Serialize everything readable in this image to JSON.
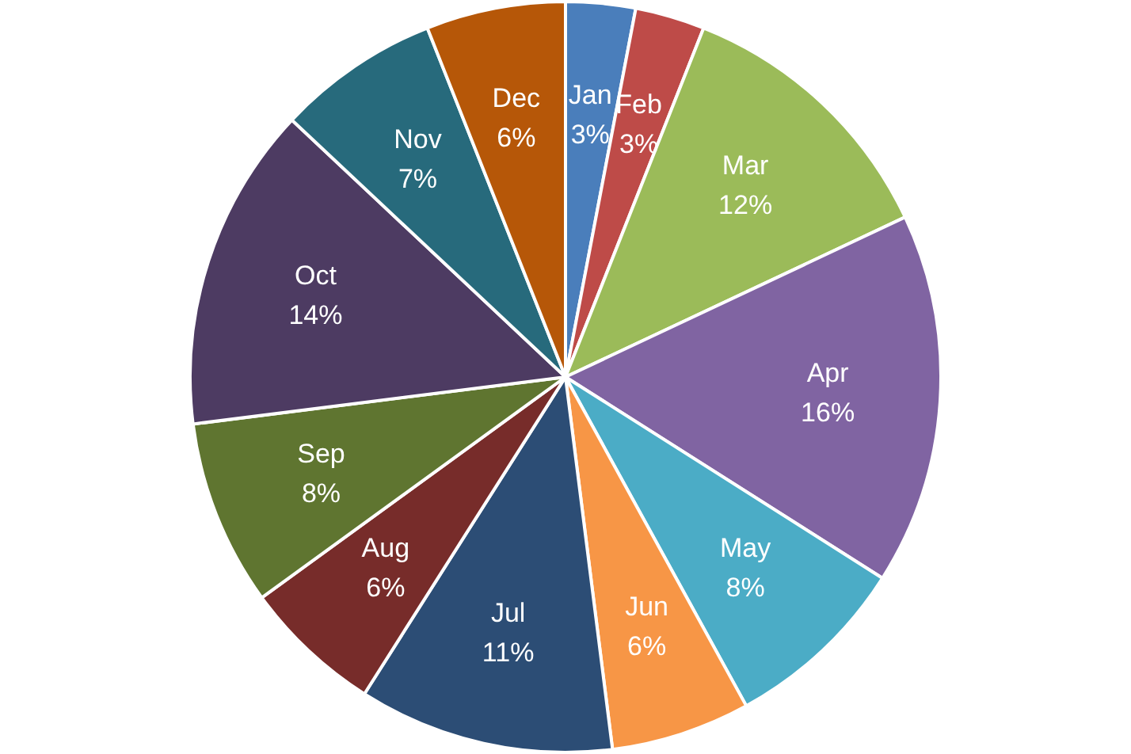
{
  "chart_data": {
    "type": "pie",
    "categories": [
      "Jan",
      "Feb",
      "Mar",
      "Apr",
      "May",
      "Jun",
      "Jul",
      "Aug",
      "Sep",
      "Oct",
      "Nov",
      "Dec"
    ],
    "values": [
      3,
      3,
      12,
      16,
      8,
      6,
      11,
      6,
      8,
      14,
      7,
      6
    ],
    "value_labels": [
      "3%",
      "3%",
      "12%",
      "16%",
      "8%",
      "6%",
      "11%",
      "6%",
      "8%",
      "14%",
      "7%",
      "6%"
    ],
    "colors": [
      "#4a7ebb",
      "#be4b48",
      "#9bbb59",
      "#8064a2",
      "#4bacc6",
      "#f79646",
      "#2c4d75",
      "#772c2a",
      "#5f7530",
      "#4d3b62",
      "#276a7c",
      "#b65708"
    ],
    "legend": false
  }
}
